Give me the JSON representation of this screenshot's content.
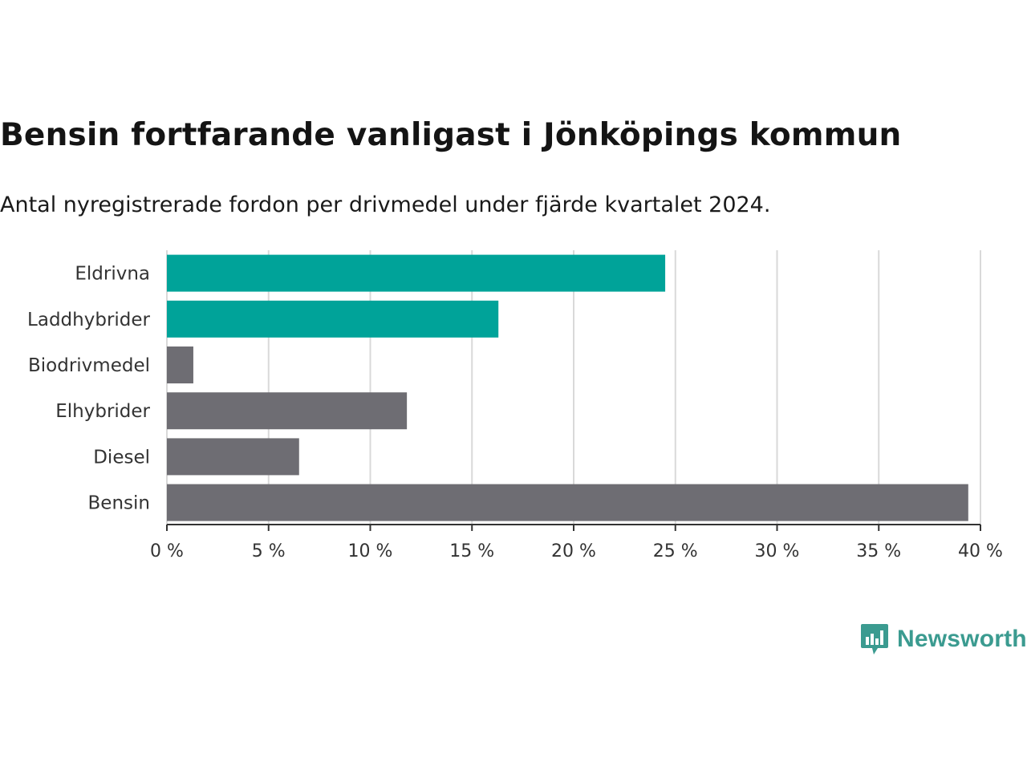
{
  "title": "Bensin fortfarande vanligast i Jönköpings kommun",
  "subtitle": "Antal nyregistrerade fordon per drivmedel under fjärde kvartalet 2024.",
  "brand": {
    "name": "Newsworthy",
    "icon": "newsworthy-logo-icon"
  },
  "colors": {
    "highlight": "#00a399",
    "muted": "#6e6d73",
    "grid": "#d9d9d9",
    "axis": "#333333"
  },
  "chart_data": {
    "type": "bar",
    "orientation": "horizontal",
    "title": "Bensin fortfarande vanligast i Jönköpings kommun",
    "subtitle": "Antal nyregistrerade fordon per drivmedel under fjärde kvartalet 2024.",
    "xlabel": "",
    "ylabel": "",
    "xlim": [
      0,
      40
    ],
    "ticks": [
      0,
      5,
      10,
      15,
      20,
      25,
      30,
      35,
      40
    ],
    "tick_labels": [
      "0 %",
      "5 %",
      "10 %",
      "15 %",
      "20 %",
      "25 %",
      "30 %",
      "35 %",
      "40 %"
    ],
    "grid": true,
    "categories": [
      "Eldrivna",
      "Laddhybrider",
      "Biodrivmedel",
      "Elhybrider",
      "Diesel",
      "Bensin"
    ],
    "values": [
      24.5,
      16.3,
      1.3,
      11.8,
      6.5,
      39.4
    ],
    "highlight": [
      true,
      true,
      false,
      false,
      false,
      false
    ]
  }
}
